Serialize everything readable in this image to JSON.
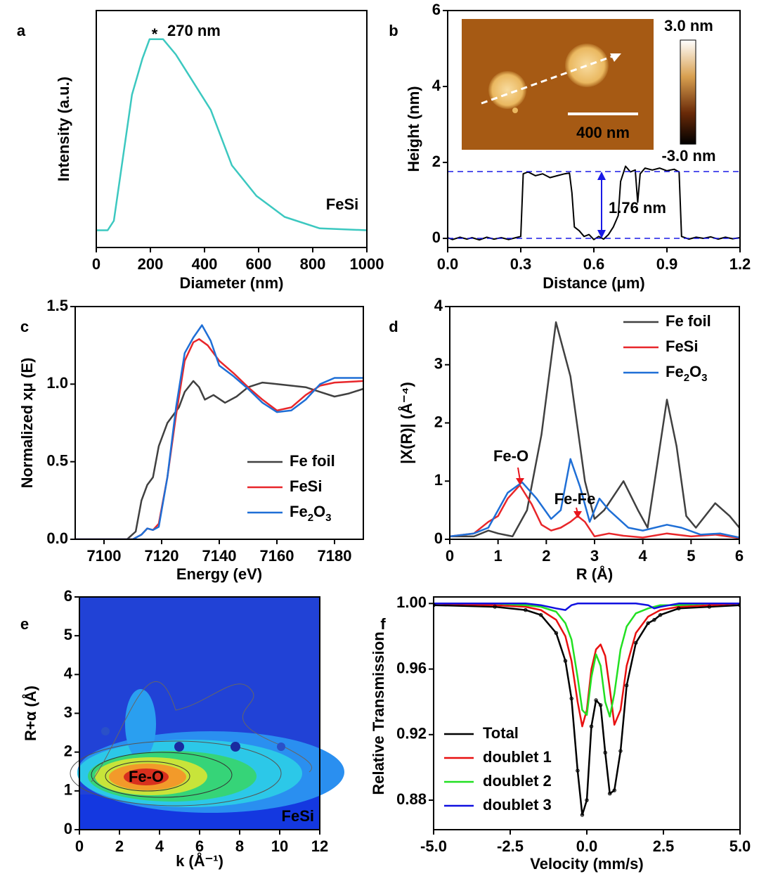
{
  "chart_data": [
    {
      "type": "line",
      "panel_label": "a",
      "x_label": "Diameter (nm)",
      "y_label": "Intensity (a.u.)",
      "x": [
        0,
        42,
        65,
        132,
        171,
        197,
        247,
        294,
        423,
        501,
        592,
        696,
        826,
        1000
      ],
      "values": [
        0,
        0,
        0.05,
        0.71,
        0.9,
        1.0,
        1.0,
        0.92,
        0.63,
        0.34,
        0.18,
        0.07,
        0.01,
        0
      ],
      "color": "#3cc8c0",
      "label": "FeSi",
      "peak_label": "270 nm",
      "xlim": [
        0,
        1000
      ],
      "ylim": [
        -0.09,
        1.15
      ],
      "xticks": [
        0,
        200,
        400,
        600,
        800,
        1000
      ]
    },
    {
      "type": "line",
      "panel_label": "b",
      "x_label": "Distance (μm)",
      "y_label": "Height (nm)",
      "x": [
        0,
        0.02,
        0.05,
        0.08,
        0.1,
        0.13,
        0.16,
        0.19,
        0.22,
        0.25,
        0.28,
        0.3,
        0.31,
        0.33,
        0.36,
        0.39,
        0.42,
        0.45,
        0.48,
        0.5,
        0.51,
        0.52,
        0.54,
        0.56,
        0.58,
        0.6,
        0.62,
        0.64,
        0.66,
        0.68,
        0.7,
        0.71,
        0.73,
        0.75,
        0.77,
        0.78,
        0.79,
        0.81,
        0.84,
        0.87,
        0.9,
        0.93,
        0.95,
        0.96,
        0.99,
        1.02,
        1.05,
        1.08,
        1.11,
        1.14,
        1.17,
        1.2
      ],
      "values": [
        0.02,
        -0.03,
        0.03,
        -0.02,
        0.02,
        -0.04,
        0.03,
        -0.02,
        0.02,
        -0.03,
        0.02,
        0.05,
        1.7,
        1.75,
        1.65,
        1.7,
        1.6,
        1.65,
        1.7,
        1.72,
        1.2,
        0.3,
        0.2,
        0.05,
        0.1,
        -0.03,
        0.05,
        -0.02,
        0.1,
        0.3,
        0.6,
        1.5,
        1.9,
        1.75,
        1.8,
        0.95,
        1.7,
        1.85,
        1.8,
        1.85,
        1.78,
        1.82,
        1.75,
        0.05,
        -0.02,
        0.03,
        0,
        0.04,
        -0.02,
        0.03,
        -0.01,
        0.02
      ],
      "color": "#000000",
      "step_height": 1.76,
      "step_label": "1.76 nm",
      "scale_bar_label": "400 nm",
      "colorbar_max_label": "3.0 nm",
      "colorbar_min_label": "-3.0 nm",
      "xlim": [
        0,
        1.2
      ],
      "ylim": [
        -0.24,
        6
      ],
      "xticks": [
        {
          "value": 0,
          "label": "0.0"
        },
        0.3,
        0.6,
        0.9,
        1.2
      ],
      "yticks": [
        0,
        2,
        4,
        6
      ]
    },
    {
      "type": "line",
      "panel_label": "c",
      "x_label": "Energy (eV)",
      "y_label": "Normalized xμ (E)",
      "legend": "lower right",
      "series": [
        {
          "name": "Fe foil",
          "color": "#404040",
          "x": [
            7090,
            7108,
            7111,
            7113,
            7115,
            7117,
            7119,
            7122,
            7126,
            7128,
            7131,
            7133,
            7135,
            7138,
            7142,
            7146,
            7150,
            7155,
            7160,
            7170,
            7175,
            7180,
            7185,
            7190
          ],
          "values": [
            0,
            0,
            0.05,
            0.25,
            0.35,
            0.4,
            0.6,
            0.75,
            0.85,
            0.95,
            1.02,
            0.98,
            0.9,
            0.93,
            0.88,
            0.92,
            0.98,
            1.01,
            1.0,
            0.98,
            0.95,
            0.92,
            0.94,
            0.97
          ]
        },
        {
          "name": "FeSi",
          "color": "#e8262a",
          "x": [
            7090,
            7110,
            7113,
            7115,
            7117,
            7119,
            7122,
            7125,
            7128,
            7131,
            7133,
            7136,
            7140,
            7145,
            7150,
            7155,
            7160,
            7165,
            7170,
            7175,
            7180,
            7190
          ],
          "values": [
            0,
            0,
            0.03,
            0.07,
            0.06,
            0.1,
            0.4,
            0.8,
            1.15,
            1.27,
            1.29,
            1.25,
            1.15,
            1.07,
            0.98,
            0.9,
            0.83,
            0.85,
            0.93,
            0.99,
            1.01,
            1.02
          ]
        },
        {
          "name": "Fe2O3",
          "color": "#1f6fd6",
          "x": [
            7090,
            7110,
            7113,
            7115,
            7117,
            7119,
            7122,
            7125,
            7128,
            7131,
            7134,
            7137,
            7140,
            7145,
            7150,
            7155,
            7160,
            7165,
            7170,
            7175,
            7180,
            7190
          ],
          "values": [
            0,
            0,
            0.03,
            0.07,
            0.06,
            0.08,
            0.4,
            0.85,
            1.2,
            1.3,
            1.38,
            1.28,
            1.12,
            1.05,
            0.97,
            0.88,
            0.82,
            0.83,
            0.9,
            1.0,
            1.04,
            1.04
          ]
        }
      ],
      "xlim": [
        7090,
        7190
      ],
      "ylim": [
        0,
        1.5
      ],
      "xticks": [
        7100,
        7120,
        7140,
        7160,
        7180
      ],
      "yticks": [
        {
          "value": 0,
          "label": "0.0"
        },
        0.5,
        {
          "value": 1,
          "label": "1.0"
        },
        1.5
      ]
    },
    {
      "type": "line",
      "panel_label": "d",
      "x_label": "R (Å)",
      "y_label": "|X(R)| (Å⁻⁴)",
      "legend": "upper right",
      "annotations": [
        "Fe-O",
        "Fe-Fe"
      ],
      "annotation_color": "#e8141c",
      "series": [
        {
          "name": "Fe foil",
          "color": "#404040",
          "x": [
            0,
            0.5,
            0.8,
            1.0,
            1.3,
            1.6,
            1.9,
            2.2,
            2.5,
            2.8,
            3.0,
            3.2,
            3.6,
            3.9,
            4.1,
            4.3,
            4.5,
            4.7,
            4.9,
            5.1,
            5.5,
            5.8,
            6.0
          ],
          "values": [
            0.05,
            0.05,
            0.15,
            0.1,
            0.05,
            0.5,
            1.8,
            3.73,
            2.8,
            1.0,
            0.35,
            0.5,
            1.0,
            0.5,
            0.2,
            1.3,
            2.4,
            1.6,
            0.4,
            0.2,
            0.62,
            0.4,
            0.2
          ]
        },
        {
          "name": "FeSi",
          "color": "#e8262a",
          "x": [
            0,
            0.5,
            0.8,
            1.0,
            1.2,
            1.45,
            1.7,
            1.9,
            2.1,
            2.3,
            2.5,
            2.65,
            2.8,
            3.0,
            3.3,
            3.6,
            4.0,
            4.5,
            5.0,
            5.5,
            6.0
          ],
          "values": [
            0.05,
            0.1,
            0.3,
            0.4,
            0.7,
            0.93,
            0.6,
            0.25,
            0.15,
            0.2,
            0.3,
            0.4,
            0.3,
            0.05,
            0.1,
            0.06,
            0.03,
            0.1,
            0.05,
            0.08,
            0.02
          ]
        },
        {
          "name": "Fe2O3",
          "color": "#1f6fd6",
          "x": [
            0,
            0.5,
            0.8,
            1.0,
            1.2,
            1.5,
            1.8,
            2.1,
            2.3,
            2.5,
            2.7,
            2.9,
            3.1,
            3.3,
            3.7,
            4.0,
            4.5,
            4.8,
            5.2,
            5.6,
            6.0
          ],
          "values": [
            0.05,
            0.1,
            0.2,
            0.5,
            0.8,
            0.98,
            0.7,
            0.35,
            0.5,
            1.38,
            0.9,
            0.3,
            0.7,
            0.5,
            0.2,
            0.15,
            0.25,
            0.2,
            0.08,
            0.1,
            0.03
          ]
        }
      ],
      "xlim": [
        0,
        6
      ],
      "ylim": [
        0,
        4
      ],
      "xticks": [
        0,
        1,
        2,
        3,
        4,
        5,
        6
      ],
      "yticks": [
        0,
        1,
        2,
        3,
        4
      ]
    },
    {
      "type": "contour",
      "panel_label": "e",
      "x_label": "k (Å⁻¹)",
      "y_label": "R+α (Å)",
      "annotations": [
        "Fe-O"
      ],
      "label": "FeSi",
      "xlim": [
        0,
        12
      ],
      "ylim": [
        0,
        6
      ],
      "xticks": [
        0,
        2,
        4,
        6,
        8,
        10,
        12
      ],
      "yticks": [
        0,
        1,
        2,
        3,
        4,
        5,
        6
      ]
    },
    {
      "type": "line",
      "panel_label": "f",
      "x_label": "Velocity (mm/s)",
      "y_label": "Relative Transmission",
      "legend": "lower left",
      "x": [
        -5,
        -3,
        -2,
        -1.5,
        -1,
        -0.7,
        -0.5,
        -0.3,
        -0.15,
        0,
        0.15,
        0.3,
        0.45,
        0.6,
        0.75,
        0.9,
        1.1,
        1.3,
        1.6,
        2,
        2.2,
        2.4,
        3,
        4,
        5
      ],
      "series": [
        {
          "name": "Total",
          "color": "#000000",
          "values": [
            0.999,
            0.998,
            0.996,
            0.993,
            0.982,
            0.965,
            0.942,
            0.898,
            0.871,
            0.88,
            0.925,
            0.941,
            0.938,
            0.909,
            0.884,
            0.886,
            0.91,
            0.95,
            0.976,
            0.988,
            0.99,
            0.993,
            0.997,
            0.998,
            0.999
          ]
        },
        {
          "name": "doublet 1",
          "color": "#e81010",
          "values": [
            1,
            0.999,
            0.998,
            0.996,
            0.99,
            0.98,
            0.965,
            0.94,
            0.925,
            0.935,
            0.96,
            0.972,
            0.975,
            0.968,
            0.948,
            0.926,
            0.935,
            0.962,
            0.982,
            0.992,
            0.994,
            0.996,
            0.998,
            0.999,
            1
          ]
        },
        {
          "name": "doublet 2",
          "color": "#22e022",
          "values": [
            1,
            1,
            0.999,
            0.998,
            0.995,
            0.988,
            0.978,
            0.955,
            0.935,
            0.932,
            0.955,
            0.969,
            0.962,
            0.94,
            0.931,
            0.945,
            0.972,
            0.986,
            0.994,
            0.997,
            0.998,
            0.999,
            0.999,
            1,
            1
          ]
        },
        {
          "name": "doublet 3",
          "color": "#1010e0",
          "values": [
            1,
            1,
            1,
            0.999,
            0.997,
            0.996,
            0.999,
            1,
            1,
            1,
            1,
            1,
            1,
            1,
            1,
            1,
            1,
            1,
            1,
            0.999,
            0.997,
            0.998,
            1,
            1,
            1
          ]
        }
      ],
      "xlim": [
        -5,
        5
      ],
      "ylim": [
        0.862,
        1.004
      ],
      "xticks": [
        {
          "value": -5,
          "label": "-5.0"
        },
        -2.5,
        {
          "value": 0,
          "label": "0.0"
        },
        2.5,
        {
          "value": 5,
          "label": "5.0"
        }
      ],
      "yticks": [
        0.88,
        0.92,
        0.96,
        {
          "value": 1,
          "label": "1.00"
        }
      ]
    }
  ]
}
